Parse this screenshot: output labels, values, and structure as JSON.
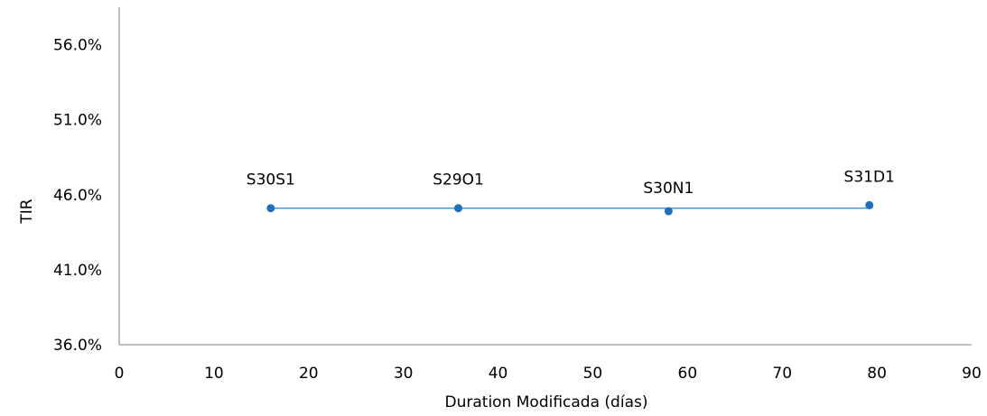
{
  "chart_data": {
    "type": "scatter",
    "title": "",
    "xlabel": "Duration  Modificada (días)",
    "ylabel": "TIR",
    "xlim": [
      0,
      90
    ],
    "ylim": [
      36.0,
      58.5
    ],
    "x_ticks": [
      "0",
      "10",
      "20",
      "30",
      "40",
      "50",
      "60",
      "70",
      "80",
      "90"
    ],
    "y_ticks": [
      "36.0%",
      "41.0%",
      "46.0%",
      "51.0%",
      "56.0%"
    ],
    "grid": false,
    "series": [
      {
        "points": [
          {
            "label": "S30S1",
            "x": 16,
            "y": 45.1
          },
          {
            "label": "S29O1",
            "x": 35.8,
            "y": 45.1
          },
          {
            "label": "S30N1",
            "x": 58,
            "y": 44.9
          },
          {
            "label": "S31D1",
            "x": 79.2,
            "y": 45.3
          }
        ]
      }
    ],
    "trendline": {
      "x": [
        16,
        79.2
      ],
      "y": [
        45.1,
        45.1
      ]
    },
    "colors": {
      "marker": "#1F6FBF",
      "trendline": "#2E86C1",
      "axis": "#808080"
    }
  }
}
